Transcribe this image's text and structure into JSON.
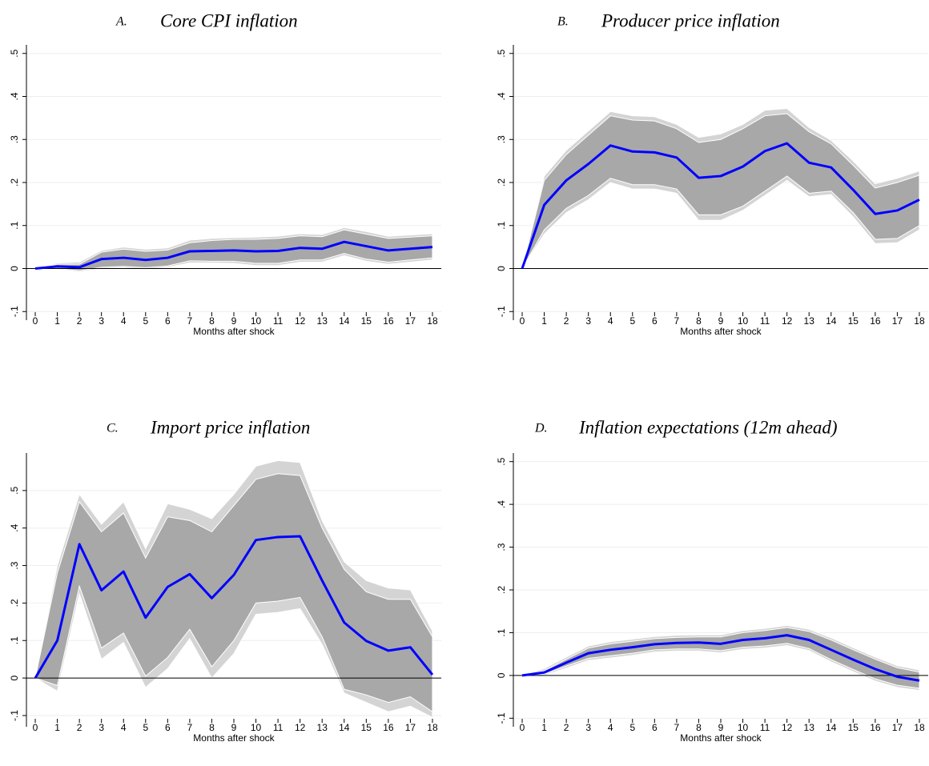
{
  "chart_data": [
    {
      "type": "line",
      "panel": "A.",
      "title": "Core CPI inflation",
      "xlabel": "Months after shock",
      "x": [
        0,
        1,
        2,
        3,
        4,
        5,
        6,
        7,
        8,
        9,
        10,
        11,
        12,
        13,
        14,
        15,
        16,
        17,
        18
      ],
      "xlim": [
        -0.4,
        18.4
      ],
      "xticks": [
        0,
        1,
        2,
        3,
        4,
        5,
        6,
        7,
        8,
        9,
        10,
        11,
        12,
        13,
        14,
        15,
        16,
        17,
        18
      ],
      "ylim": [
        -0.12,
        0.52
      ],
      "yticks": [
        {
          "value": -0.1,
          "label": "-.1"
        },
        0,
        {
          "value": 0.1,
          "label": ".1"
        },
        {
          "value": 0.2,
          "label": ".2"
        },
        {
          "value": 0.3,
          "label": ".3"
        },
        {
          "value": 0.4,
          "label": ".4"
        },
        {
          "value": 0.5,
          "label": ".5"
        }
      ],
      "grid": true,
      "bands": [
        {
          "color": "#d4d4d4",
          "lower": [
            0,
            -0.002,
            -0.008,
            0.0,
            0.002,
            -0.002,
            0.003,
            0.013,
            0.013,
            0.012,
            0.007,
            0.007,
            0.015,
            0.015,
            0.03,
            0.017,
            0.01,
            0.015,
            0.02
          ],
          "upper": [
            0,
            0.013,
            0.015,
            0.042,
            0.05,
            0.045,
            0.048,
            0.066,
            0.07,
            0.072,
            0.073,
            0.075,
            0.081,
            0.079,
            0.095,
            0.086,
            0.075,
            0.078,
            0.081
          ]
        },
        {
          "color": "#a8a8a8",
          "lower": [
            0,
            0.0,
            -0.005,
            0.003,
            0.005,
            0.002,
            0.006,
            0.018,
            0.017,
            0.017,
            0.012,
            0.012,
            0.02,
            0.02,
            0.035,
            0.022,
            0.015,
            0.02,
            0.025
          ],
          "upper": [
            0,
            0.01,
            0.01,
            0.038,
            0.045,
            0.04,
            0.043,
            0.06,
            0.065,
            0.068,
            0.068,
            0.07,
            0.076,
            0.074,
            0.09,
            0.08,
            0.07,
            0.073,
            0.076
          ]
        }
      ],
      "series": [
        {
          "color": "#0000ff",
          "values": [
            0,
            0.005,
            0.003,
            0.022,
            0.025,
            0.02,
            0.025,
            0.04,
            0.041,
            0.042,
            0.04,
            0.041,
            0.048,
            0.046,
            0.062,
            0.052,
            0.042,
            0.046,
            0.05
          ]
        }
      ]
    },
    {
      "type": "line",
      "panel": "B.",
      "title": "Producer price inflation",
      "xlabel": "Months after shock",
      "x": [
        0,
        1,
        2,
        3,
        4,
        5,
        6,
        7,
        8,
        9,
        10,
        11,
        12,
        13,
        14,
        15,
        16,
        17,
        18
      ],
      "xlim": [
        -0.4,
        18.4
      ],
      "xticks": [
        0,
        1,
        2,
        3,
        4,
        5,
        6,
        7,
        8,
        9,
        10,
        11,
        12,
        13,
        14,
        15,
        16,
        17,
        18
      ],
      "ylim": [
        -0.12,
        0.52
      ],
      "yticks": [
        {
          "value": -0.1,
          "label": "-.1"
        },
        0,
        {
          "value": 0.1,
          "label": ".1"
        },
        {
          "value": 0.2,
          "label": ".2"
        },
        {
          "value": 0.3,
          "label": ".3"
        },
        {
          "value": 0.4,
          "label": ".4"
        },
        {
          "value": 0.5,
          "label": ".5"
        }
      ],
      "grid": true,
      "bands": [
        {
          "color": "#d4d4d4",
          "lower": [
            0,
            0.08,
            0.13,
            0.16,
            0.2,
            0.185,
            0.185,
            0.175,
            0.112,
            0.112,
            0.135,
            0.17,
            0.205,
            0.167,
            0.172,
            0.12,
            0.058,
            0.06,
            0.09
          ],
          "upper": [
            0,
            0.215,
            0.275,
            0.32,
            0.365,
            0.355,
            0.353,
            0.335,
            0.305,
            0.313,
            0.335,
            0.368,
            0.372,
            0.328,
            0.298,
            0.25,
            0.197,
            0.21,
            0.227
          ]
        },
        {
          "color": "#a8a8a8",
          "lower": [
            0,
            0.09,
            0.14,
            0.17,
            0.21,
            0.195,
            0.195,
            0.185,
            0.125,
            0.125,
            0.145,
            0.18,
            0.215,
            0.175,
            0.18,
            0.13,
            0.068,
            0.07,
            0.1
          ],
          "upper": [
            0,
            0.205,
            0.265,
            0.31,
            0.355,
            0.345,
            0.343,
            0.325,
            0.293,
            0.3,
            0.325,
            0.355,
            0.36,
            0.318,
            0.29,
            0.24,
            0.187,
            0.2,
            0.217
          ]
        }
      ],
      "series": [
        {
          "color": "#0000ff",
          "values": [
            0,
            0.148,
            0.205,
            0.243,
            0.286,
            0.272,
            0.27,
            0.258,
            0.211,
            0.215,
            0.237,
            0.273,
            0.291,
            0.246,
            0.235,
            0.183,
            0.127,
            0.135,
            0.16
          ]
        }
      ]
    },
    {
      "type": "line",
      "panel": "C.",
      "title": "Import price inflation",
      "xlabel": "Months after shock",
      "x": [
        0,
        1,
        2,
        3,
        4,
        5,
        6,
        7,
        8,
        9,
        10,
        11,
        12,
        13,
        14,
        15,
        16,
        17,
        18
      ],
      "xlim": [
        -0.4,
        18.4
      ],
      "xticks": [
        0,
        1,
        2,
        3,
        4,
        5,
        6,
        7,
        8,
        9,
        10,
        11,
        12,
        13,
        14,
        15,
        16,
        17,
        18
      ],
      "ylim": [
        -0.13,
        0.6
      ],
      "yticks": [
        {
          "value": -0.1,
          "label": "-.1"
        },
        0,
        {
          "value": 0.1,
          "label": ".1"
        },
        {
          "value": 0.2,
          "label": ".2"
        },
        {
          "value": 0.3,
          "label": ".3"
        },
        {
          "value": 0.4,
          "label": ".4"
        },
        {
          "value": 0.5,
          "label": ".5"
        }
      ],
      "grid": true,
      "bands": [
        {
          "color": "#d4d4d4",
          "lower": [
            0,
            -0.035,
            0.225,
            0.05,
            0.095,
            -0.025,
            0.025,
            0.105,
            0.0,
            0.065,
            0.17,
            0.175,
            0.185,
            0.09,
            -0.04,
            -0.065,
            -0.09,
            -0.075,
            -0.105
          ],
          "upper": [
            0,
            0.3,
            0.49,
            0.41,
            0.47,
            0.345,
            0.465,
            0.45,
            0.425,
            0.49,
            0.565,
            0.58,
            0.575,
            0.42,
            0.31,
            0.26,
            0.24,
            0.235,
            0.125
          ]
        },
        {
          "color": "#a8a8a8",
          "lower": [
            0,
            -0.02,
            0.245,
            0.08,
            0.12,
            0.005,
            0.055,
            0.13,
            0.03,
            0.1,
            0.2,
            0.205,
            0.215,
            0.11,
            -0.03,
            -0.045,
            -0.065,
            -0.05,
            -0.09
          ],
          "upper": [
            0,
            0.28,
            0.47,
            0.39,
            0.44,
            0.32,
            0.43,
            0.42,
            0.39,
            0.46,
            0.53,
            0.545,
            0.54,
            0.4,
            0.29,
            0.23,
            0.21,
            0.21,
            0.11
          ]
        }
      ],
      "series": [
        {
          "color": "#0000ff",
          "values": [
            0,
            0.1,
            0.357,
            0.234,
            0.284,
            0.161,
            0.243,
            0.277,
            0.213,
            0.275,
            0.368,
            0.376,
            0.378,
            0.26,
            0.148,
            0.099,
            0.073,
            0.082,
            0.009
          ]
        }
      ]
    },
    {
      "type": "line",
      "panel": "D.",
      "title": "Inflation expectations (12m ahead)",
      "xlabel": "Months after shock",
      "x": [
        0,
        1,
        2,
        3,
        4,
        5,
        6,
        7,
        8,
        9,
        10,
        11,
        12,
        13,
        14,
        15,
        16,
        17,
        18
      ],
      "xlim": [
        -0.4,
        18.4
      ],
      "xticks": [
        0,
        1,
        2,
        3,
        4,
        5,
        6,
        7,
        8,
        9,
        10,
        11,
        12,
        13,
        14,
        15,
        16,
        17,
        18
      ],
      "ylim": [
        -0.12,
        0.52
      ],
      "yticks": [
        {
          "value": -0.1,
          "label": "-.1"
        },
        0,
        {
          "value": 0.1,
          "label": ".1"
        },
        {
          "value": 0.2,
          "label": ".2"
        },
        {
          "value": 0.3,
          "label": ".3"
        },
        {
          "value": 0.4,
          "label": ".4"
        },
        {
          "value": 0.5,
          "label": ".5"
        }
      ],
      "grid": true,
      "bands": [
        {
          "color": "#d4d4d4",
          "lower": [
            0,
            0.0,
            0.017,
            0.035,
            0.041,
            0.047,
            0.055,
            0.057,
            0.057,
            0.053,
            0.061,
            0.064,
            0.07,
            0.058,
            0.032,
            0.009,
            -0.013,
            -0.028,
            -0.035
          ],
          "upper": [
            0,
            0.016,
            0.043,
            0.069,
            0.079,
            0.085,
            0.091,
            0.094,
            0.095,
            0.095,
            0.105,
            0.11,
            0.117,
            0.108,
            0.088,
            0.065,
            0.043,
            0.023,
            0.013
          ]
        },
        {
          "color": "#a8a8a8",
          "lower": [
            0,
            0.003,
            0.022,
            0.04,
            0.046,
            0.052,
            0.06,
            0.062,
            0.062,
            0.058,
            0.066,
            0.069,
            0.075,
            0.063,
            0.037,
            0.014,
            -0.008,
            -0.023,
            -0.03
          ],
          "upper": [
            0,
            0.011,
            0.038,
            0.064,
            0.074,
            0.08,
            0.086,
            0.089,
            0.09,
            0.09,
            0.1,
            0.105,
            0.112,
            0.103,
            0.083,
            0.06,
            0.038,
            0.018,
            0.008
          ]
        }
      ],
      "series": [
        {
          "color": "#0000ff",
          "values": [
            0,
            0.007,
            0.03,
            0.052,
            0.06,
            0.066,
            0.073,
            0.076,
            0.077,
            0.074,
            0.083,
            0.087,
            0.094,
            0.083,
            0.06,
            0.037,
            0.015,
            -0.003,
            -0.012
          ]
        }
      ]
    }
  ]
}
